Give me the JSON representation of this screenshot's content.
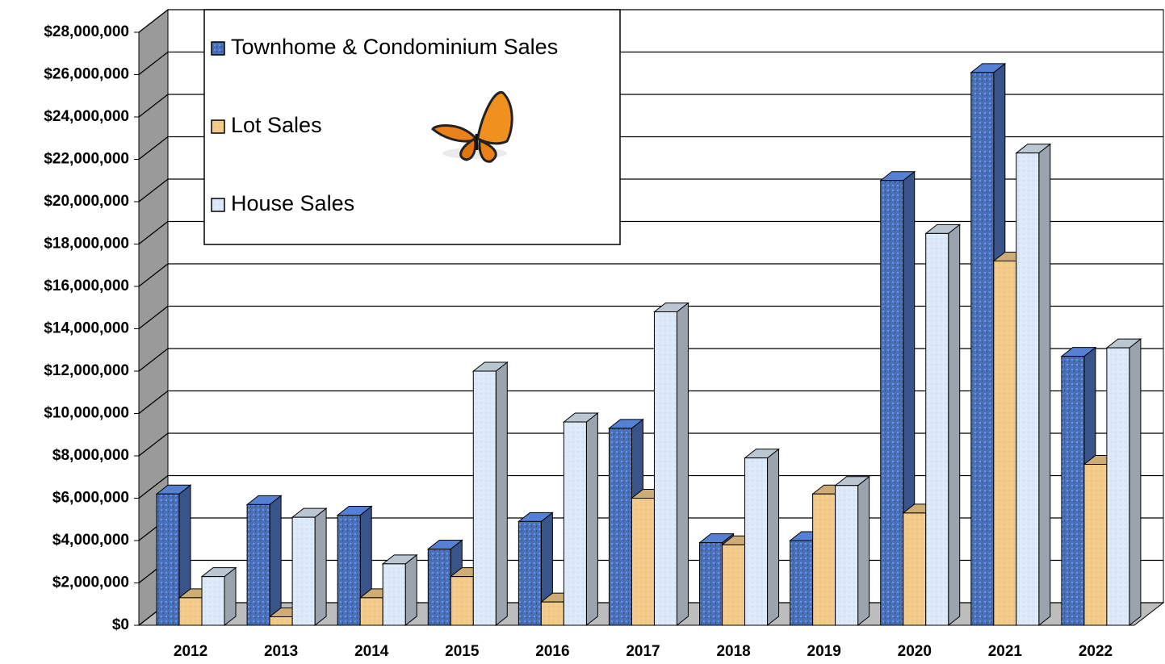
{
  "chart_data": {
    "type": "bar3d",
    "categories": [
      "2012",
      "2013",
      "2014",
      "2015",
      "2016",
      "2017",
      "2018",
      "2019",
      "2020",
      "2021",
      "2022"
    ],
    "series": [
      {
        "name": "Townhome & Condominium Sales",
        "color": "#4a70b8",
        "values": [
          6200000,
          5700000,
          5200000,
          3600000,
          4900000,
          9300000,
          3900000,
          4000000,
          21000000,
          26100000,
          12700000
        ]
      },
      {
        "name": "Lot Sales",
        "color": "#f2cb8a",
        "values": [
          1300000,
          400000,
          1300000,
          2300000,
          1100000,
          6000000,
          3800000,
          6200000,
          5300000,
          17200000,
          7600000
        ]
      },
      {
        "name": "House Sales",
        "color": "#dce9f8",
        "values": [
          2300000,
          5100000,
          2900000,
          12000000,
          9600000,
          14800000,
          7900000,
          6600000,
          18500000,
          22300000,
          13100000
        ]
      }
    ],
    "ylim": [
      0,
      28000000
    ],
    "yticks": [
      {
        "value": 0,
        "label": "$0"
      },
      {
        "value": 2000000,
        "label": "$2,000,000"
      },
      {
        "value": 4000000,
        "label": "$4,000,000"
      },
      {
        "value": 6000000,
        "label": "$6,000,000"
      },
      {
        "value": 8000000,
        "label": "$8,000,000"
      },
      {
        "value": 10000000,
        "label": "$10,000,000"
      },
      {
        "value": 12000000,
        "label": "$12,000,000"
      },
      {
        "value": 14000000,
        "label": "$14,000,000"
      },
      {
        "value": 16000000,
        "label": "$16,000,000"
      },
      {
        "value": 18000000,
        "label": "$18,000,000"
      },
      {
        "value": 20000000,
        "label": "$20,000,000"
      },
      {
        "value": 22000000,
        "label": "$22,000,000"
      },
      {
        "value": 24000000,
        "label": "$24,000,000"
      },
      {
        "value": 26000000,
        "label": "$26,000,000"
      },
      {
        "value": 28000000,
        "label": "$28,000,000"
      }
    ],
    "grid": true
  }
}
